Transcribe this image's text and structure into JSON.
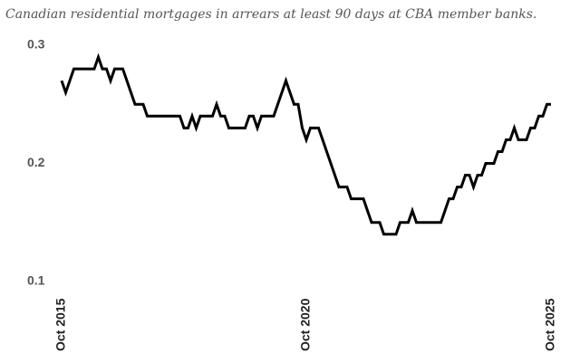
{
  "chart_data": {
    "type": "line",
    "title": "Canadian residential mortgages in arrears at least 90 days at CBA member banks.",
    "categories": [
      "Oct 2015",
      null,
      null,
      null,
      null,
      null,
      null,
      null,
      null,
      null,
      null,
      null,
      null,
      null,
      null,
      null,
      null,
      null,
      null,
      null,
      null,
      null,
      null,
      null,
      null,
      null,
      null,
      null,
      null,
      null,
      null,
      null,
      null,
      null,
      null,
      null,
      null,
      null,
      null,
      null,
      null,
      null,
      null,
      null,
      null,
      null,
      null,
      null,
      null,
      null,
      null,
      null,
      null,
      null,
      null,
      null,
      null,
      null,
      null,
      null,
      "Oct 2020",
      null,
      null,
      null,
      null,
      null,
      null,
      null,
      null,
      null,
      null,
      null,
      null,
      null,
      null,
      null,
      null,
      null,
      null,
      null,
      null,
      null,
      null,
      null,
      null,
      null,
      null,
      null,
      null,
      null,
      null,
      null,
      null,
      null,
      null,
      null,
      null,
      null,
      null,
      null,
      null,
      null,
      null,
      null,
      null,
      null,
      null,
      null,
      null,
      null,
      null,
      null,
      null,
      null,
      null,
      null,
      null,
      null,
      null,
      null,
      "Oct 2025"
    ],
    "values": [
      0.27,
      0.26,
      0.27,
      0.28,
      0.28,
      0.28,
      0.28,
      0.28,
      0.28,
      0.29,
      0.28,
      0.28,
      0.27,
      0.28,
      0.28,
      0.28,
      0.27,
      0.26,
      0.25,
      0.25,
      0.25,
      0.24,
      0.24,
      0.24,
      0.24,
      0.24,
      0.24,
      0.24,
      0.24,
      0.24,
      0.23,
      0.23,
      0.24,
      0.23,
      0.24,
      0.24,
      0.24,
      0.24,
      0.25,
      0.24,
      0.24,
      0.23,
      0.23,
      0.23,
      0.23,
      0.23,
      0.24,
      0.24,
      0.23,
      0.24,
      0.24,
      0.24,
      0.24,
      0.25,
      0.26,
      0.27,
      0.26,
      0.25,
      0.25,
      0.23,
      0.22,
      0.23,
      0.23,
      0.23,
      0.22,
      0.21,
      0.2,
      0.19,
      0.18,
      0.18,
      0.18,
      0.17,
      0.17,
      0.17,
      0.17,
      0.16,
      0.15,
      0.15,
      0.15,
      0.14,
      0.14,
      0.14,
      0.14,
      0.15,
      0.15,
      0.15,
      0.16,
      0.15,
      0.15,
      0.15,
      0.15,
      0.15,
      0.15,
      0.15,
      0.16,
      0.17,
      0.17,
      0.18,
      0.18,
      0.19,
      0.19,
      0.18,
      0.19,
      0.19,
      0.2,
      0.2,
      0.2,
      0.21,
      0.21,
      0.22,
      0.22,
      0.23,
      0.22,
      0.22,
      0.22,
      0.23,
      0.23,
      0.24,
      0.24,
      0.25,
      0.25
    ],
    "color": "#000000",
    "ylim": [
      0.1,
      0.3
    ],
    "yticks": [
      0.1,
      0.2,
      0.3
    ],
    "grid": false
  }
}
